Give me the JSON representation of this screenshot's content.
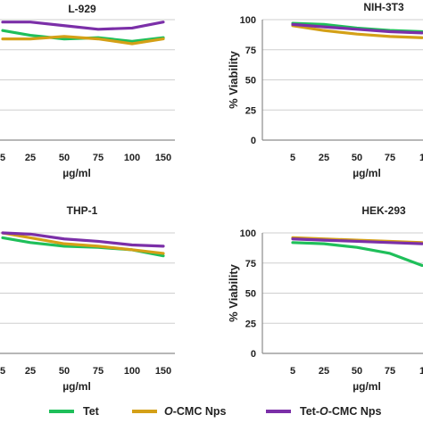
{
  "figure": {
    "legend": {
      "entries": [
        {
          "prefix": "",
          "italic": "",
          "suffix": "Tet",
          "color": "#1fbf5a"
        },
        {
          "prefix": "",
          "italic": "O",
          "suffix": "-CMC Nps",
          "color": "#d4a017"
        },
        {
          "prefix": "Tet-",
          "italic": "O",
          "suffix": "-CMC Nps",
          "color": "#7b2fa8"
        }
      ]
    }
  },
  "chart_data": [
    {
      "type": "line",
      "title": "L-929",
      "xlabel": "µg/ml",
      "ylabel": "",
      "categories": [
        "5",
        "25",
        "50",
        "75",
        "100",
        "150"
      ],
      "ylim": [
        0,
        100
      ],
      "yticks": [],
      "grid": true,
      "series": [
        {
          "name": "Tet",
          "color": "#1fbf5a",
          "values": [
            91,
            87,
            84,
            85,
            82,
            85
          ]
        },
        {
          "name": "O-CMC Nps",
          "color": "#d4a017",
          "values": [
            84,
            84,
            86,
            84,
            80,
            84
          ]
        },
        {
          "name": "Tet-O-CMC Nps",
          "color": "#7b2fa8",
          "values": [
            98,
            98,
            95,
            92,
            93,
            98
          ]
        }
      ]
    },
    {
      "type": "line",
      "title": "NIH-3T3",
      "xlabel": "µg/ml",
      "ylabel": "% Viability",
      "categories": [
        "5",
        "25",
        "50",
        "75",
        "1"
      ],
      "ylim": [
        0,
        100
      ],
      "yticks": [
        0,
        25,
        50,
        75,
        100
      ],
      "grid": true,
      "series": [
        {
          "name": "Tet",
          "color": "#1fbf5a",
          "values": [
            97,
            96,
            93,
            91,
            90
          ]
        },
        {
          "name": "O-CMC Nps",
          "color": "#d4a017",
          "values": [
            95,
            91,
            88,
            86,
            85
          ]
        },
        {
          "name": "Tet-O-CMC Nps",
          "color": "#7b2fa8",
          "values": [
            96,
            94,
            92,
            90,
            89
          ]
        }
      ]
    },
    {
      "type": "line",
      "title": "THP-1",
      "xlabel": "µg/ml",
      "ylabel": "",
      "categories": [
        "5",
        "25",
        "50",
        "75",
        "100",
        "150"
      ],
      "ylim": [
        0,
        100
      ],
      "yticks": [],
      "grid": true,
      "series": [
        {
          "name": "Tet",
          "color": "#1fbf5a",
          "values": [
            96,
            92,
            89,
            88,
            86,
            81
          ]
        },
        {
          "name": "O-CMC Nps",
          "color": "#d4a017",
          "values": [
            100,
            96,
            91,
            89,
            86,
            83
          ]
        },
        {
          "name": "Tet-O-CMC Nps",
          "color": "#7b2fa8",
          "values": [
            100,
            99,
            95,
            93,
            90,
            89
          ]
        }
      ]
    },
    {
      "type": "line",
      "title": "HEK-293",
      "xlabel": "µg/ml",
      "ylabel": "% Viability",
      "categories": [
        "5",
        "25",
        "50",
        "75",
        "1"
      ],
      "ylim": [
        0,
        100
      ],
      "yticks": [
        0,
        25,
        50,
        75,
        100
      ],
      "grid": true,
      "series": [
        {
          "name": "Tet",
          "color": "#1fbf5a",
          "values": [
            92,
            91,
            88,
            83,
            73
          ]
        },
        {
          "name": "O-CMC Nps",
          "color": "#d4a017",
          "values": [
            96,
            95,
            94,
            93,
            92
          ]
        },
        {
          "name": "Tet-O-CMC Nps",
          "color": "#7b2fa8",
          "values": [
            95,
            94,
            93,
            92,
            91
          ]
        }
      ]
    }
  ]
}
